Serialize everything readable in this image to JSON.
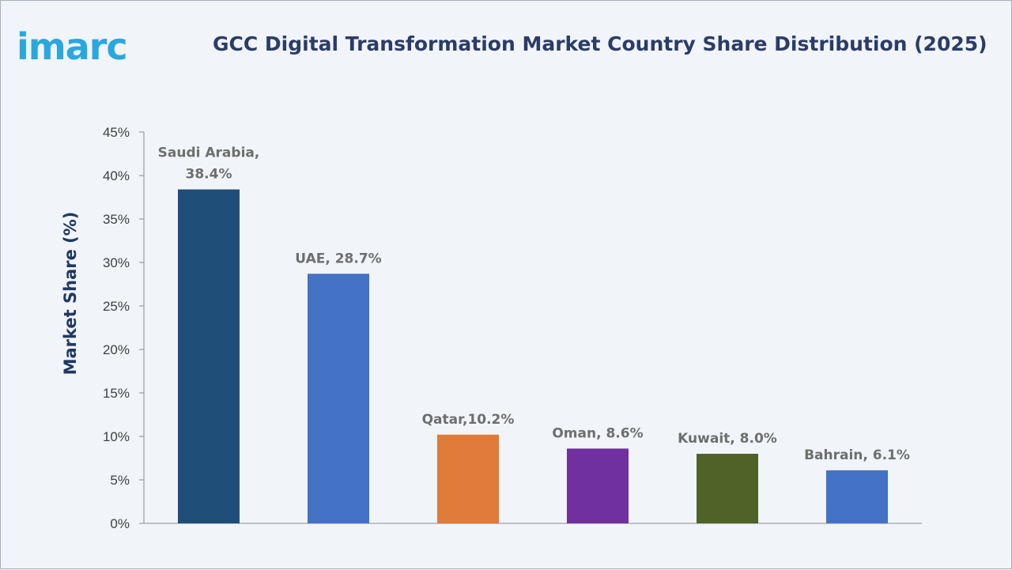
{
  "logo": {
    "text": "imarc",
    "color": "#29a8e0"
  },
  "chart_data": {
    "type": "bar",
    "title": "GCC Digital Transformation Market Country Share Distribution (2025)",
    "ylabel": "Market Share (%)",
    "xlabel": "",
    "ylim": [
      0,
      45
    ],
    "yticks": [
      "0%",
      "5%",
      "10%",
      "15%",
      "20%",
      "25%",
      "30%",
      "35%",
      "40%",
      "45%"
    ],
    "grid": false,
    "legend": "none",
    "categories": [
      "Saudi Arabia",
      "UAE",
      "Qatar",
      "Oman",
      "Kuwait",
      "Bahrain"
    ],
    "values": [
      38.4,
      28.7,
      10.2,
      8.6,
      8.0,
      6.1
    ],
    "data_labels": [
      [
        "Saudi Arabia,",
        "38.4%"
      ],
      [
        "UAE, 28.7%"
      ],
      [
        "Qatar,10.2%"
      ],
      [
        "Oman, 8.6%"
      ],
      [
        "Kuwait, 8.0%"
      ],
      [
        "Bahrain, 6.1%"
      ]
    ],
    "colors": [
      "#1f4e79",
      "#4472c4",
      "#e07b39",
      "#7030a0",
      "#4f6228",
      "#4472c4"
    ]
  }
}
